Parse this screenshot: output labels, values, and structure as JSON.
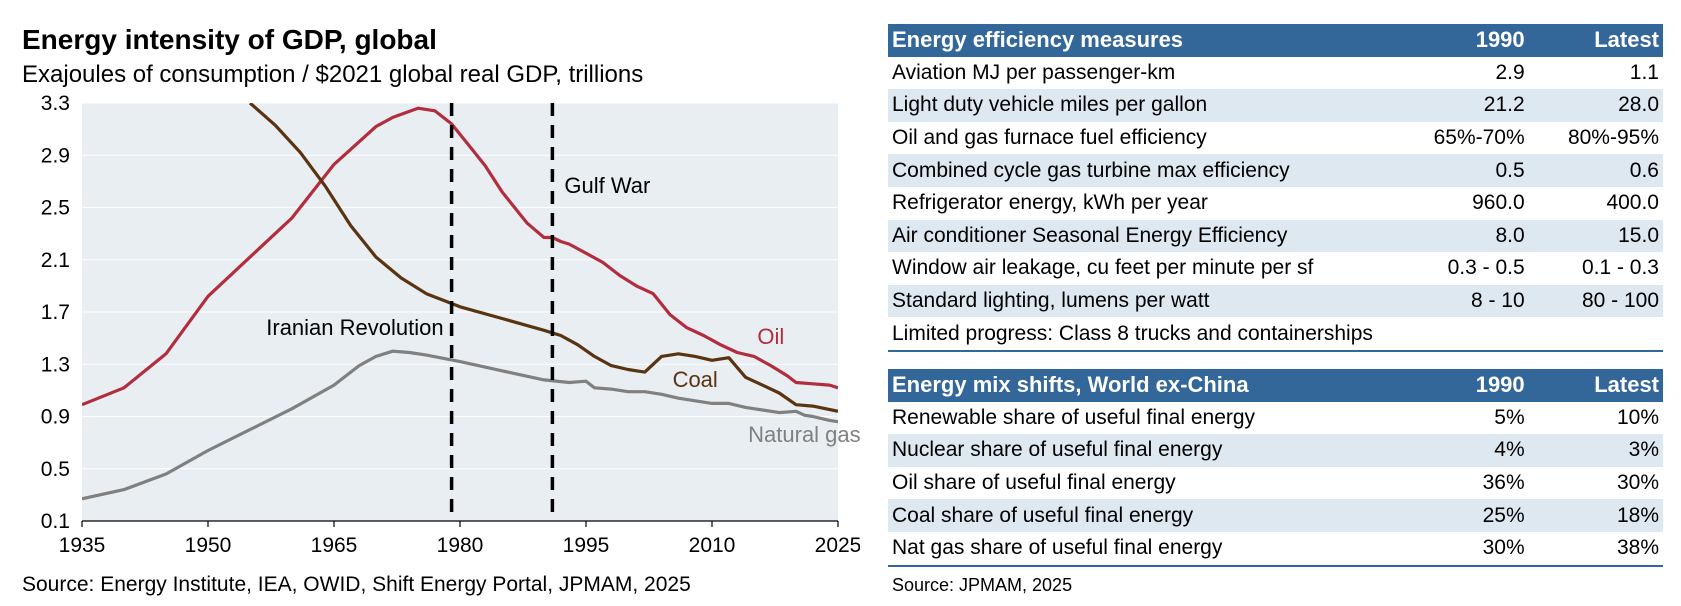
{
  "title": "Energy intensity of GDP, global",
  "subtitle": "Exajoules of consumption / $2021 global real GDP, trillions",
  "source_left": "Source: Energy Institute, IEA, OWID, Shift Energy Portal, JPMAM, 2025",
  "source_right": "Source: JPMAM, 2025",
  "colors": {
    "oil": "#b22e3e",
    "coal": "#5a3311",
    "gas": "#808080",
    "plot_bg": "#e8eef2",
    "header": "#336699",
    "alt_row": "#dde8f0"
  },
  "chart_data": {
    "type": "line",
    "title": "Energy intensity of GDP, global",
    "ylabel": "Exajoules of consumption / $2021 global real GDP, trillions",
    "xlabel": "",
    "xlim": [
      1935,
      2025
    ],
    "ylim": [
      0.1,
      3.3
    ],
    "x_ticks": [
      "1935",
      "1950",
      "1965",
      "1980",
      "1995",
      "2010",
      "2025"
    ],
    "y_ticks": [
      "0.1",
      "0.5",
      "0.9",
      "1.3",
      "1.7",
      "2.1",
      "2.5",
      "2.9",
      "3.3"
    ],
    "x_tick_values": [
      1935,
      1950,
      1965,
      1980,
      1995,
      2010,
      2025
    ],
    "y_tick_values": [
      0.1,
      0.5,
      0.9,
      1.3,
      1.7,
      2.1,
      2.5,
      2.9,
      3.3
    ],
    "series": [
      {
        "name": "Oil",
        "label": "Oil",
        "color": "#b22e3e",
        "x": [
          1935,
          1940,
          1945,
          1950,
          1955,
          1960,
          1965,
          1970,
          1972,
          1975,
          1977,
          1979,
          1981,
          1983,
          1985,
          1988,
          1990,
          1991,
          1992,
          1993,
          1995,
          1997,
          1999,
          2001,
          2003,
          2005,
          2007,
          2009,
          2011,
          2013,
          2015,
          2017,
          2019,
          2020,
          2022,
          2024,
          2025
        ],
        "values": [
          0.99,
          1.12,
          1.38,
          1.82,
          2.12,
          2.42,
          2.83,
          3.12,
          3.19,
          3.26,
          3.24,
          3.14,
          2.98,
          2.82,
          2.62,
          2.38,
          2.27,
          2.27,
          2.24,
          2.22,
          2.15,
          2.08,
          1.98,
          1.9,
          1.84,
          1.68,
          1.58,
          1.52,
          1.45,
          1.39,
          1.36,
          1.29,
          1.21,
          1.16,
          1.15,
          1.14,
          1.12
        ]
      },
      {
        "name": "Coal",
        "label": "Coal",
        "color": "#5a3311",
        "x": [
          1955,
          1958,
          1961,
          1964,
          1967,
          1970,
          1973,
          1976,
          1980,
          1985,
          1990,
          1992,
          1994,
          1996,
          1998,
          2000,
          2002,
          2004,
          2006,
          2008,
          2010,
          2012,
          2014,
          2016,
          2018,
          2020,
          2022,
          2025
        ],
        "values": [
          3.3,
          3.13,
          2.92,
          2.66,
          2.36,
          2.12,
          1.96,
          1.84,
          1.74,
          1.65,
          1.56,
          1.52,
          1.45,
          1.36,
          1.29,
          1.26,
          1.24,
          1.36,
          1.38,
          1.36,
          1.33,
          1.35,
          1.2,
          1.14,
          1.08,
          0.99,
          0.98,
          0.94
        ]
      },
      {
        "name": "Natural gas",
        "label": "Natural gas",
        "color": "#808080",
        "x": [
          1935,
          1940,
          1945,
          1950,
          1955,
          1960,
          1965,
          1968,
          1970,
          1972,
          1974,
          1976,
          1980,
          1985,
          1990,
          1993,
          1995,
          1996,
          1998,
          2000,
          2002,
          2004,
          2006,
          2008,
          2010,
          2012,
          2014,
          2016,
          2018,
          2020,
          2021,
          2022,
          2024,
          2025
        ],
        "values": [
          0.27,
          0.34,
          0.46,
          0.64,
          0.8,
          0.96,
          1.14,
          1.29,
          1.36,
          1.4,
          1.39,
          1.37,
          1.32,
          1.25,
          1.18,
          1.16,
          1.17,
          1.12,
          1.11,
          1.09,
          1.09,
          1.07,
          1.04,
          1.02,
          1.0,
          1.0,
          0.97,
          0.95,
          0.93,
          0.94,
          0.91,
          0.9,
          0.87,
          0.86
        ]
      }
    ],
    "vlines": [
      {
        "x": 1979,
        "label": "Iranian Revolution"
      },
      {
        "x": 1991,
        "label": "Gulf War"
      }
    ]
  },
  "table_efficiency": {
    "header": {
      "label": "Energy efficiency measures",
      "col1990": "1990",
      "colLatest": "Latest"
    },
    "rows": [
      {
        "label": "Aviation MJ per passenger-km",
        "y1990": "2.9",
        "latest": "1.1"
      },
      {
        "label": "Light duty vehicle miles per gallon",
        "y1990": "21.2",
        "latest": "28.0"
      },
      {
        "label": "Oil and gas furnace fuel efficiency",
        "y1990": "65%-70%",
        "latest": "80%-95%"
      },
      {
        "label": "Combined cycle gas turbine max efficiency",
        "y1990": "0.5",
        "latest": "0.6"
      },
      {
        "label": "Refrigerator energy, kWh per year",
        "y1990": "960.0",
        "latest": "400.0"
      },
      {
        "label": "Air conditioner Seasonal Energy Efficiency",
        "y1990": "8.0",
        "latest": "15.0"
      },
      {
        "label": "Window air leakage, cu feet per minute per sf",
        "y1990": "0.3 - 0.5",
        "latest": "0.1 - 0.3"
      },
      {
        "label": "Standard lighting, lumens per watt",
        "y1990": "8 - 10",
        "latest": "80 - 100"
      }
    ],
    "note": "Limited progress: Class 8 trucks and containerships"
  },
  "table_mix": {
    "header": {
      "label": "Energy mix shifts, World ex-China",
      "col1990": "1990",
      "colLatest": "Latest"
    },
    "rows": [
      {
        "label": "Renewable share of useful final energy",
        "y1990": "5%",
        "latest": "10%"
      },
      {
        "label": "Nuclear share of useful final energy",
        "y1990": "4%",
        "latest": "3%"
      },
      {
        "label": "Oil share of useful final energy",
        "y1990": "36%",
        "latest": "30%"
      },
      {
        "label": "Coal share of useful final energy",
        "y1990": "25%",
        "latest": "18%"
      },
      {
        "label": "Nat gas share of useful final energy",
        "y1990": "30%",
        "latest": "38%"
      }
    ]
  }
}
